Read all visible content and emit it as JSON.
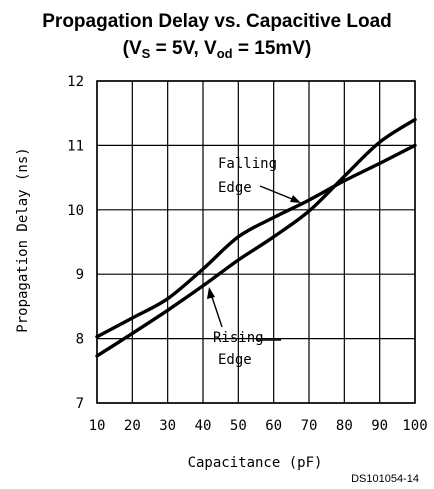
{
  "chart_data": {
    "type": "line",
    "title_line1": "Propagation Delay vs. Capacitive Load",
    "title_line2": {
      "open": "(V",
      "vs_sub": "S",
      "mid": " = 5V, V",
      "vod_sub": "od",
      "close": " = 15mV)"
    },
    "xlabel": "Capacitance (pF)",
    "ylabel": "Propagation Delay (ns)",
    "xlim": [
      10,
      100
    ],
    "ylim": [
      7,
      12
    ],
    "x_ticks": [
      "10",
      "20",
      "30",
      "40",
      "50",
      "60",
      "70",
      "80",
      "90",
      "100"
    ],
    "y_ticks": [
      "7",
      "8",
      "9",
      "10",
      "11",
      "12"
    ],
    "grid": true,
    "series": [
      {
        "name": "Falling Edge",
        "x": [
          10,
          20,
          30,
          40,
          50,
          60,
          70,
          80,
          90,
          100
        ],
        "y": [
          7.73,
          8.08,
          8.44,
          8.82,
          9.22,
          9.58,
          9.98,
          10.52,
          11.05,
          11.4
        ]
      },
      {
        "name": "Rising Edge",
        "x": [
          10,
          20,
          30,
          40,
          50,
          60,
          70,
          80,
          90,
          100
        ],
        "y": [
          8.03,
          8.32,
          8.62,
          9.08,
          9.58,
          9.88,
          10.15,
          10.45,
          10.72,
          11.0
        ]
      }
    ],
    "annotations": {
      "falling": [
        "Falling",
        "Edge"
      ],
      "rising": [
        "Rising",
        "Edge"
      ]
    },
    "footer_code": "DS101054-14"
  }
}
